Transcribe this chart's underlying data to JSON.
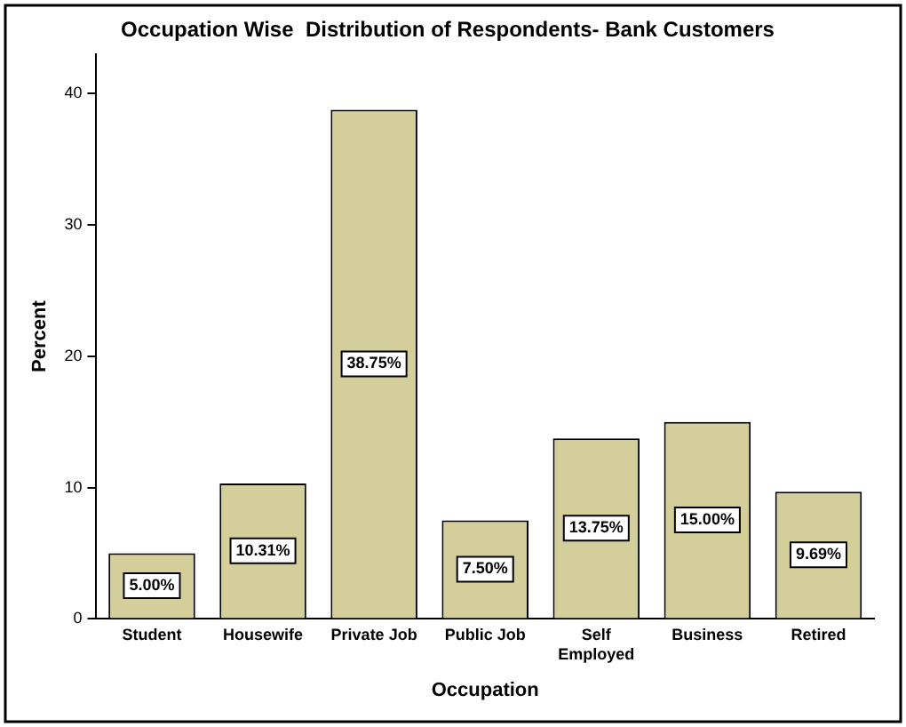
{
  "chart_data": {
    "type": "bar",
    "title": "Occupation Wise  Distribution of Respondents- Bank Customers",
    "xlabel": "Occupation",
    "ylabel": "Percent",
    "categories": [
      "Student",
      "Housewife",
      "Private Job",
      "Public Job",
      "Self Employed",
      "Business",
      "Retired"
    ],
    "values": [
      5.0,
      10.31,
      38.75,
      7.5,
      13.75,
      15.0,
      9.69
    ],
    "value_labels": [
      "5.00%",
      "10.31%",
      "38.75%",
      "7.50%",
      "13.75%",
      "15.00%",
      "9.69%"
    ],
    "color": "#d3ce9a",
    "ylim": [
      0,
      43
    ],
    "yticks": [
      0,
      10,
      20,
      30,
      40
    ],
    "grid": false,
    "legend": false
  }
}
